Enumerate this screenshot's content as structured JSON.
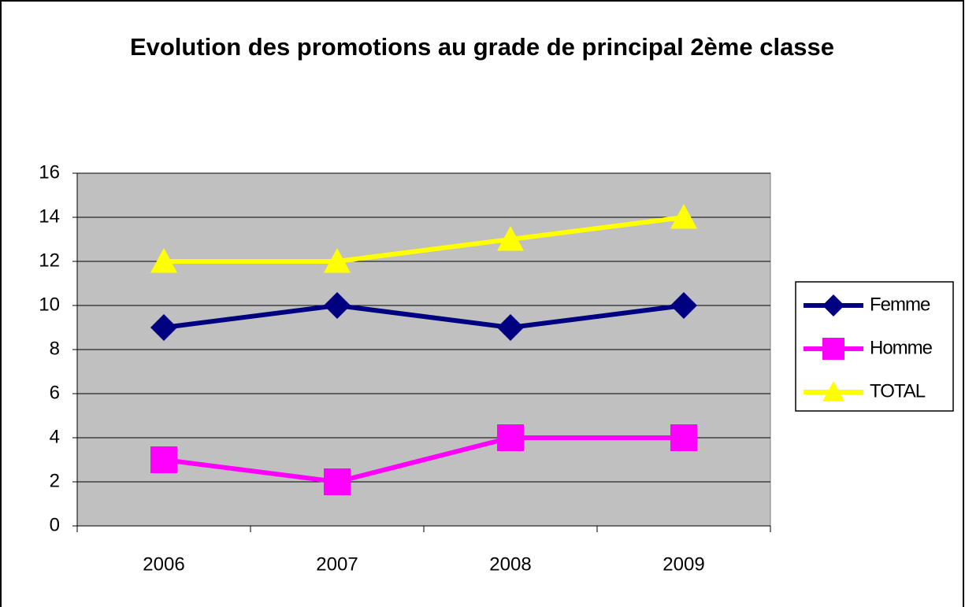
{
  "chart_data": {
    "type": "line",
    "title": "Evolution des promotions au grade de principal 2ème classe",
    "categories": [
      "2006",
      "2007",
      "2008",
      "2009"
    ],
    "series": [
      {
        "name": "Femme",
        "color": "#000080",
        "marker": "diamond",
        "values": [
          9,
          10,
          9,
          10
        ]
      },
      {
        "name": "Homme",
        "color": "#ff00ff",
        "marker": "square",
        "values": [
          3,
          2,
          4,
          4
        ]
      },
      {
        "name": "TOTAL",
        "color": "#ffff00",
        "marker": "triangle",
        "values": [
          12,
          12,
          13,
          14
        ]
      }
    ],
    "ylim": [
      0,
      16
    ],
    "yticks": [
      0,
      2,
      4,
      6,
      8,
      10,
      12,
      14,
      16
    ],
    "grid": true,
    "legend": "right"
  }
}
